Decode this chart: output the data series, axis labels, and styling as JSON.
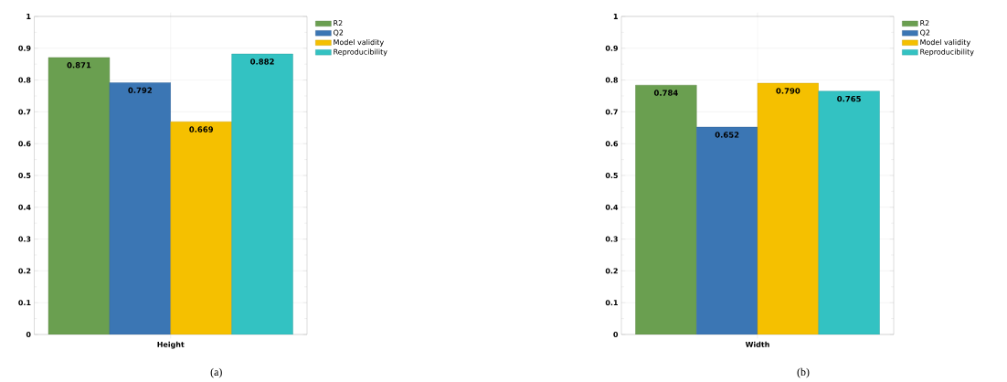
{
  "chart_data": [
    {
      "type": "bar",
      "categories": [
        "Height"
      ],
      "ylim": [
        0,
        1
      ],
      "yticks": [
        0,
        0.1,
        0.2,
        0.3,
        0.4,
        0.5,
        0.6,
        0.7,
        0.8,
        0.9,
        1
      ],
      "grid": true,
      "legend": "top right",
      "annotations": [
        "(a)"
      ],
      "series": [
        {
          "name": "R2",
          "color": "#6a9f50",
          "values": [
            0.871
          ],
          "value_labels": [
            "0.871"
          ]
        },
        {
          "name": "Q2",
          "color": "#3b76b4",
          "values": [
            0.792
          ],
          "value_labels": [
            "0.792"
          ]
        },
        {
          "name": "Model validity",
          "color": "#f5c000",
          "values": [
            0.669
          ],
          "value_labels": [
            "0.669"
          ]
        },
        {
          "name": "Reproducibility",
          "color": "#33c2c2",
          "values": [
            0.882
          ],
          "value_labels": [
            "0.882"
          ]
        }
      ]
    },
    {
      "type": "bar",
      "categories": [
        "Width"
      ],
      "ylim": [
        0,
        1
      ],
      "yticks": [
        0,
        0.1,
        0.2,
        0.3,
        0.4,
        0.5,
        0.6,
        0.7,
        0.8,
        0.9,
        1
      ],
      "grid": true,
      "legend": "top right",
      "annotations": [
        "(b)"
      ],
      "series": [
        {
          "name": "R2",
          "color": "#6a9f50",
          "values": [
            0.784
          ],
          "value_labels": [
            "0.784"
          ]
        },
        {
          "name": "Q2",
          "color": "#3b76b4",
          "values": [
            0.652
          ],
          "value_labels": [
            "0.652"
          ]
        },
        {
          "name": "Model validity",
          "color": "#f5c000",
          "values": [
            0.79
          ],
          "value_labels": [
            "0.790"
          ]
        },
        {
          "name": "Reproducibility",
          "color": "#33c2c2",
          "values": [
            0.765
          ],
          "value_labels": [
            "0.765"
          ]
        }
      ]
    }
  ]
}
